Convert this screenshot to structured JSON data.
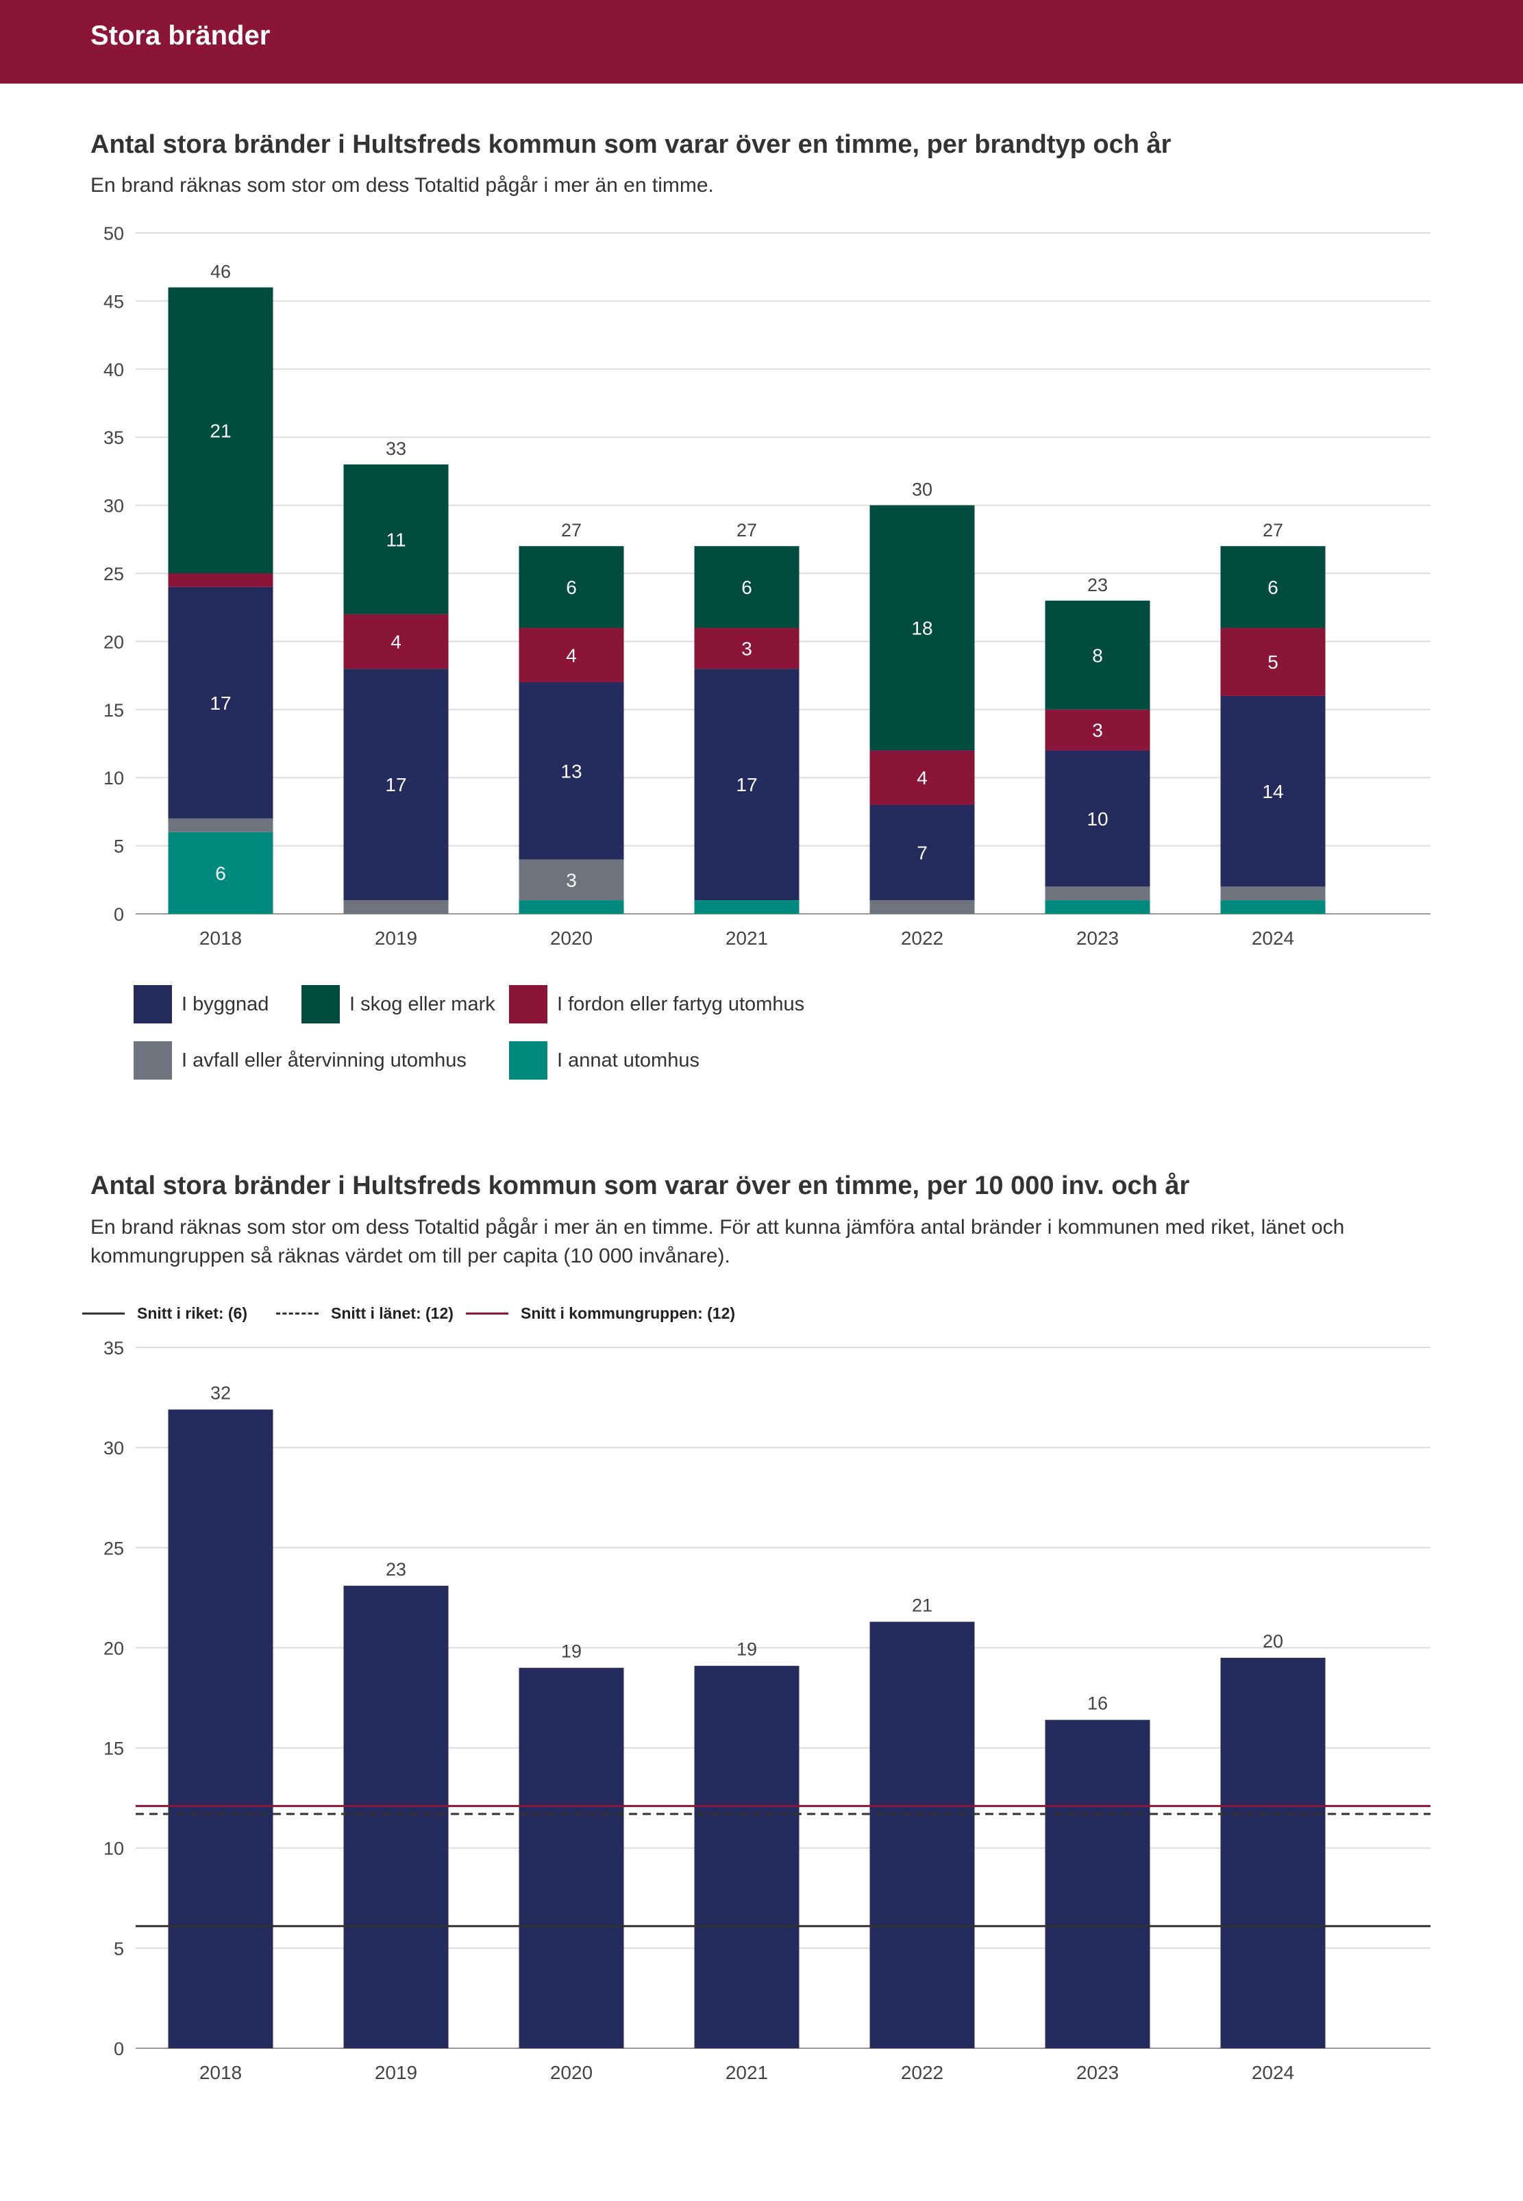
{
  "header": {
    "title": "Stora bränder"
  },
  "chart1": {
    "title": "Antal stora bränder i Hultsfreds kommun som varar över en timme, per brandtyp och år",
    "subtitle": "En brand räknas som stor om dess Totaltid pågår i mer än en timme."
  },
  "chart2": {
    "title": "Antal stora bränder i Hultsfreds kommun som varar över en timme, per 10 000 inv. och år",
    "subtitle": "En brand räknas som stor om dess Totaltid pågår i mer än en timme. För att kunna jämföra antal bränder i kommunen med riket, länet och kommungruppen så räknas värdet om till per capita (10 000 invånare).",
    "reference_legend": [
      {
        "label": "Snitt i riket: (6)",
        "style": "solid",
        "color": "#333333"
      },
      {
        "label": "Snitt i länet: (12)",
        "style": "dashed",
        "color": "#333333"
      },
      {
        "label": "Snitt i kommungruppen: (12)",
        "style": "solid",
        "color": "#8b1538"
      }
    ]
  },
  "chart_data": [
    {
      "type": "bar",
      "stacked": true,
      "categories": [
        "2018",
        "2019",
        "2020",
        "2021",
        "2022",
        "2023",
        "2024"
      ],
      "series": [
        {
          "name": "I annat utomhus",
          "color": "#008a7e",
          "values": [
            6,
            0,
            1,
            1,
            0,
            1,
            1
          ]
        },
        {
          "name": "I avfall eller återvinning utomhus",
          "color": "#6e737d",
          "values": [
            1,
            1,
            3,
            0,
            1,
            1,
            1
          ]
        },
        {
          "name": "I byggnad",
          "color": "#252b5c",
          "values": [
            17,
            17,
            13,
            17,
            7,
            10,
            14
          ]
        },
        {
          "name": "I fordon eller fartyg utomhus",
          "color": "#8b1538",
          "values": [
            1,
            4,
            4,
            3,
            4,
            3,
            5
          ]
        },
        {
          "name": "I skog eller mark",
          "color": "#004d40",
          "values": [
            21,
            11,
            6,
            6,
            18,
            8,
            6
          ]
        }
      ],
      "segment_labels_shown": {
        "I annat utomhus": [
          6,
          null,
          null,
          null,
          null,
          null,
          null
        ],
        "I avfall eller återvinning utomhus": [
          null,
          null,
          3,
          null,
          null,
          null,
          null
        ],
        "I byggnad": [
          17,
          17,
          13,
          17,
          7,
          10,
          14
        ],
        "I fordon eller fartyg utomhus": [
          null,
          4,
          4,
          3,
          4,
          3,
          5
        ],
        "I skog eller mark": [
          21,
          11,
          6,
          6,
          18,
          8,
          6
        ]
      },
      "totals": [
        46,
        33,
        27,
        27,
        30,
        23,
        27
      ],
      "ylim": [
        0,
        50
      ],
      "yticks": [
        0,
        5,
        10,
        15,
        20,
        25,
        30,
        35,
        40,
        45,
        50
      ],
      "legend_order": [
        "I byggnad",
        "I skog eller mark",
        "I fordon eller fartyg utomhus",
        "I avfall eller återvinning utomhus",
        "I annat utomhus"
      ],
      "legend_position": "bottom",
      "grid": true
    },
    {
      "type": "bar",
      "categories": [
        "2018",
        "2019",
        "2020",
        "2021",
        "2022",
        "2023",
        "2024"
      ],
      "values": [
        31.9,
        23.1,
        19.0,
        19.1,
        21.3,
        16.4,
        19.5
      ],
      "value_labels": [
        32,
        23,
        19,
        19,
        21,
        16,
        20
      ],
      "bar_color": "#252b5c",
      "reference_lines": [
        {
          "value": 6.1,
          "style": "solid",
          "color": "#333333"
        },
        {
          "value": 11.7,
          "style": "dashed",
          "color": "#333333"
        },
        {
          "value": 12.1,
          "style": "solid",
          "color": "#8b1538"
        }
      ],
      "ylim": [
        0,
        35
      ],
      "yticks": [
        0,
        5,
        10,
        15,
        20,
        25,
        30,
        35
      ],
      "legend_position": "top-left",
      "grid": true
    }
  ]
}
